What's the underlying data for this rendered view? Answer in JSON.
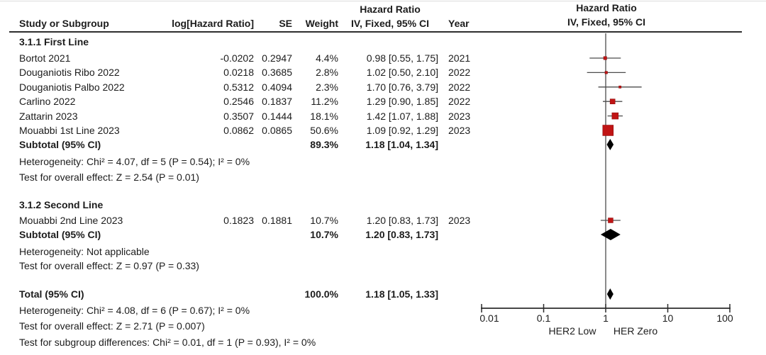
{
  "meta": {
    "background_color": "#ffffff",
    "text_color": "#1c1c1c",
    "marker_color": "#c01414",
    "marker_border_color": "#8f0f0f",
    "diamond_color": "#000000",
    "ci_line_color": "#4c4c4c",
    "axis_color": "#2b2b2b"
  },
  "table_header": {
    "hazard_ratio": "Hazard Ratio",
    "study_or_subgroup": "Study or Subgroup",
    "log_hazard_ratio": "log[Hazard Ratio]",
    "se": "SE",
    "weight": "Weight",
    "iv_fixed_ci": "IV, Fixed, 95% CI",
    "year": "Year"
  },
  "plot_header": {
    "hazard_ratio": "Hazard Ratio",
    "iv_fixed_ci": "IV, Fixed, 95% CI"
  },
  "chart_data": {
    "type": "forest",
    "effect_measure": "Hazard Ratio",
    "model": "IV, Fixed, 95% CI",
    "x_scale": "log10",
    "x_ticks": [
      0.01,
      0.1,
      1,
      10,
      100
    ],
    "x_axis_left_label": "HER2 Low",
    "x_axis_right_label": "HER Zero",
    "groups": [
      {
        "name": "3.1.1 First Line",
        "studies": [
          {
            "study": "Bortot 2021",
            "log_hr": -0.0202,
            "se": 0.2947,
            "weight_pct": 4.4,
            "hr": 0.98,
            "ci_low": 0.55,
            "ci_high": 1.75,
            "year": "2021"
          },
          {
            "study": "Douganiotis Ribo 2022",
            "log_hr": 0.0218,
            "se": 0.3685,
            "weight_pct": 2.8,
            "hr": 1.02,
            "ci_low": 0.5,
            "ci_high": 2.1,
            "year": "2022"
          },
          {
            "study": "Douganiotis Palbo 2022",
            "log_hr": 0.5312,
            "se": 0.4094,
            "weight_pct": 2.3,
            "hr": 1.7,
            "ci_low": 0.76,
            "ci_high": 3.79,
            "year": "2022"
          },
          {
            "study": "Carlino 2022",
            "log_hr": 0.2546,
            "se": 0.1837,
            "weight_pct": 11.2,
            "hr": 1.29,
            "ci_low": 0.9,
            "ci_high": 1.85,
            "year": "2022"
          },
          {
            "study": "Zattarin 2023",
            "log_hr": 0.3507,
            "se": 0.1444,
            "weight_pct": 18.1,
            "hr": 1.42,
            "ci_low": 1.07,
            "ci_high": 1.88,
            "year": "2023"
          },
          {
            "study": "Mouabbi 1st Line 2023",
            "log_hr": 0.0862,
            "se": 0.0865,
            "weight_pct": 50.6,
            "hr": 1.09,
            "ci_low": 0.92,
            "ci_high": 1.29,
            "year": "2023"
          }
        ],
        "subtotal": {
          "label": "Subtotal (95% CI)",
          "weight_pct": 89.3,
          "hr": 1.18,
          "ci_low": 1.04,
          "ci_high": 1.34
        },
        "heterogeneity": "Heterogeneity: Chi² = 4.07, df = 5 (P = 0.54); I² = 0%",
        "overall_effect": "Test for overall effect: Z = 2.54 (P = 0.01)"
      },
      {
        "name": "3.1.2 Second Line",
        "studies": [
          {
            "study": "Mouabbi 2nd Line 2023",
            "log_hr": 0.1823,
            "se": 0.1881,
            "weight_pct": 10.7,
            "hr": 1.2,
            "ci_low": 0.83,
            "ci_high": 1.73,
            "year": "2023"
          }
        ],
        "subtotal": {
          "label": "Subtotal (95% CI)",
          "weight_pct": 10.7,
          "hr": 1.2,
          "ci_low": 0.83,
          "ci_high": 1.73
        },
        "heterogeneity": "Heterogeneity: Not applicable",
        "overall_effect": "Test for overall effect: Z = 0.97 (P = 0.33)"
      }
    ],
    "total": {
      "label": "Total (95% CI)",
      "weight_pct": 100.0,
      "hr": 1.18,
      "ci_low": 1.05,
      "ci_high": 1.33
    },
    "total_heterogeneity": "Heterogeneity: Chi² = 4.08, df = 6 (P = 0.67); I² = 0%",
    "total_overall_effect": "Test for overall effect: Z = 2.71 (P = 0.007)",
    "subgroup_differences": "Test for subgroup differences: Chi² = 0.01, df = 1 (P = 0.93), I² = 0%"
  }
}
